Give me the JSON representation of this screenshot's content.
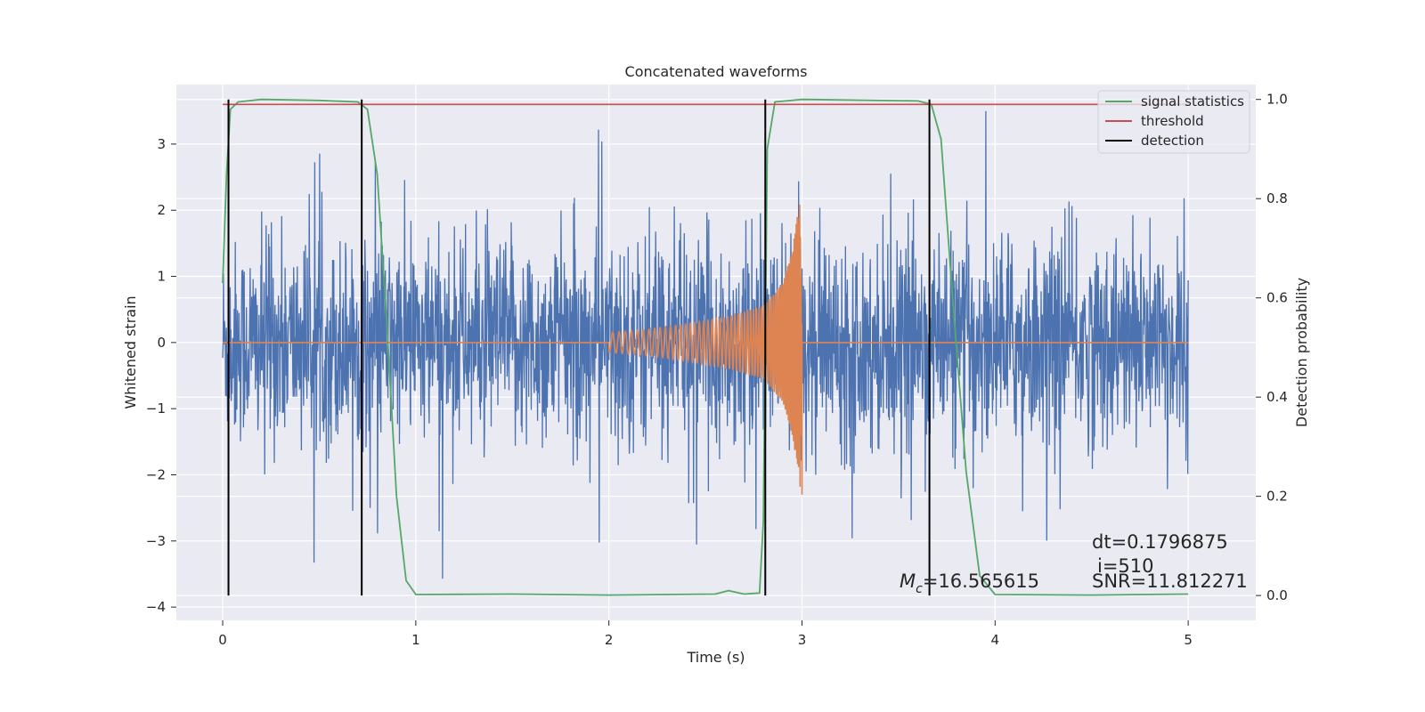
{
  "chart_data": {
    "type": "line",
    "title": "Concatenated waveforms",
    "xlabel": "Time (s)",
    "ylabel": "Whitened strain",
    "y2label": "Detection probability",
    "xlim": [
      -0.24,
      5.35
    ],
    "ylim": [
      -4.2,
      3.9
    ],
    "y2lim": [
      -0.05,
      1.03
    ],
    "x_ticks": [
      0,
      1,
      2,
      3,
      4,
      5
    ],
    "y_ticks": [
      -4,
      -3,
      -2,
      -1,
      0,
      1,
      2,
      3
    ],
    "y2_ticks": [
      0.0,
      0.2,
      0.4,
      0.6,
      0.8,
      1.0
    ],
    "grid": true,
    "legend_position": "top-right",
    "legend": [
      {
        "label": "signal statistics",
        "color": "#55a868"
      },
      {
        "label": "threshold",
        "color": "#c44e52"
      },
      {
        "label": "detection",
        "color": "#000000"
      }
    ],
    "series": [
      {
        "key": "noise",
        "color": "#4c72b0",
        "x_range": [
          0,
          5
        ],
        "amplitude_range": [
          -3.9,
          3.5
        ],
        "description_values": {
          "typical_peak": 1.8
        }
      },
      {
        "key": "chirp",
        "color": "#dd8452",
        "x": [
          2.0,
          2.2,
          2.4,
          2.6,
          2.8,
          2.9,
          2.95,
          2.99,
          3.0
        ],
        "envelope": [
          0.15,
          0.2,
          0.28,
          0.38,
          0.55,
          0.9,
          1.4,
          2.2,
          0.0
        ]
      },
      {
        "key": "signal_statistics",
        "color": "#55a868",
        "axis": "y2",
        "x": [
          0.0,
          0.02,
          0.04,
          0.08,
          0.2,
          0.5,
          0.7,
          0.75,
          0.8,
          0.85,
          0.9,
          0.95,
          1.0,
          1.5,
          2.0,
          2.55,
          2.62,
          2.7,
          2.78,
          2.8,
          2.82,
          2.86,
          3.0,
          3.6,
          3.67,
          3.72,
          3.78,
          3.85,
          3.92,
          4.0,
          4.5,
          5.0
        ],
        "y": [
          0.63,
          0.85,
          0.98,
          0.995,
          1.0,
          0.998,
          0.995,
          0.98,
          0.85,
          0.55,
          0.2,
          0.03,
          0.002,
          0.003,
          0.001,
          0.003,
          0.01,
          0.003,
          0.005,
          0.15,
          0.9,
          0.995,
          1.0,
          0.997,
          0.99,
          0.92,
          0.6,
          0.25,
          0.04,
          0.002,
          0.001,
          0.003
        ]
      },
      {
        "key": "threshold",
        "color": "#c44e52",
        "axis": "y2",
        "x": [
          0,
          5
        ],
        "y": [
          0.99,
          0.99
        ]
      }
    ],
    "detections": [
      0.03,
      0.72,
      2.81,
      3.66
    ],
    "annotations": {
      "dt": "dt=0.1796875",
      "i": "i=510",
      "mc": "=16.565615",
      "mc_symbol": "M",
      "mc_sub": "c",
      "snr": "SNR=11.812271"
    }
  }
}
